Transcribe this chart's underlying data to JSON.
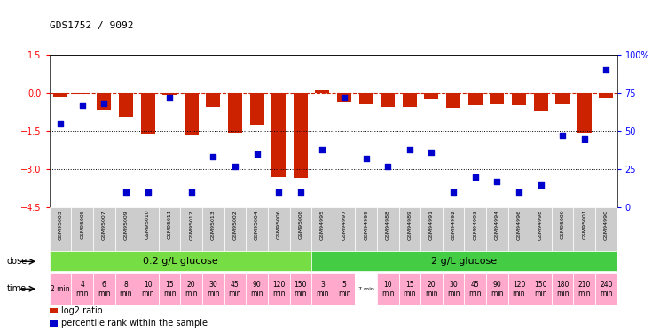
{
  "title": "GDS1752 / 9092",
  "samples": [
    "GSM95003",
    "GSM95005",
    "GSM95007",
    "GSM95009",
    "GSM95010",
    "GSM95011",
    "GSM95012",
    "GSM95013",
    "GSM95002",
    "GSM95004",
    "GSM95006",
    "GSM95008",
    "GSM94995",
    "GSM94997",
    "GSM94999",
    "GSM94988",
    "GSM94989",
    "GSM94991",
    "GSM94992",
    "GSM94993",
    "GSM94994",
    "GSM94996",
    "GSM94998",
    "GSM95000",
    "GSM95001",
    "GSM94990"
  ],
  "log2_ratio": [
    -0.18,
    -0.05,
    -0.65,
    -0.95,
    -1.6,
    -0.08,
    -1.65,
    -0.55,
    -1.55,
    -1.25,
    -3.3,
    -3.35,
    0.1,
    -0.35,
    -0.4,
    -0.55,
    -0.55,
    -0.25,
    -0.6,
    -0.5,
    -0.45,
    -0.5,
    -0.7,
    -0.4,
    -1.55,
    -0.2
  ],
  "percentile_rank": [
    55,
    67,
    68,
    10,
    10,
    72,
    10,
    33,
    27,
    35,
    10,
    10,
    38,
    72,
    32,
    27,
    38,
    36,
    10,
    20,
    17,
    10,
    15,
    47,
    45,
    90
  ],
  "ylim_left": [
    -4.5,
    1.5
  ],
  "ylim_right": [
    0,
    100
  ],
  "yticks_left": [
    1.5,
    0,
    -1.5,
    -3.0,
    -4.5
  ],
  "yticks_right": [
    100,
    75,
    50,
    25,
    0
  ],
  "ytick_labels_right": [
    "100%",
    "75",
    "50",
    "25",
    "0"
  ],
  "dotted_lines": [
    -1.5,
    -3.0
  ],
  "bar_color": "#cc2200",
  "scatter_color": "#0000cc",
  "dose_groups": [
    {
      "label": "0.2 g/L glucose",
      "n_samples": 12,
      "color": "#77dd44"
    },
    {
      "label": "2 g/L glucose",
      "n_samples": 14,
      "color": "#44cc44"
    }
  ],
  "time_labels": [
    "2 min",
    "4\nmin",
    "6\nmin",
    "8\nmin",
    "10\nmin",
    "15\nmin",
    "20\nmin",
    "30\nmin",
    "45\nmin",
    "90\nmin",
    "120\nmin",
    "150\nmin",
    "3\nmin",
    "5\nmin",
    "7 min",
    "10\nmin",
    "15\nmin",
    "20\nmin",
    "30\nmin",
    "45\nmin",
    "90\nmin",
    "120\nmin",
    "150\nmin",
    "180\nmin",
    "210\nmin",
    "240\nmin"
  ],
  "time_bg_colors": [
    "#ffaacc",
    "#ffaacc",
    "#ffaacc",
    "#ffaacc",
    "#ffaacc",
    "#ffaacc",
    "#ffaacc",
    "#ffaacc",
    "#ffaacc",
    "#ffaacc",
    "#ffaacc",
    "#ffaacc",
    "#ffaacc",
    "#ffaacc",
    "#ffffff",
    "#ffaacc",
    "#ffaacc",
    "#ffaacc",
    "#ffaacc",
    "#ffaacc",
    "#ffaacc",
    "#ffaacc",
    "#ffaacc",
    "#ffaacc",
    "#ffaacc",
    "#ffaacc"
  ],
  "legend_items": [
    {
      "color": "#cc2200",
      "label": "log2 ratio"
    },
    {
      "color": "#0000cc",
      "label": "percentile rank within the sample"
    }
  ],
  "sample_label_bg": "#cccccc",
  "bar_width": 0.65
}
